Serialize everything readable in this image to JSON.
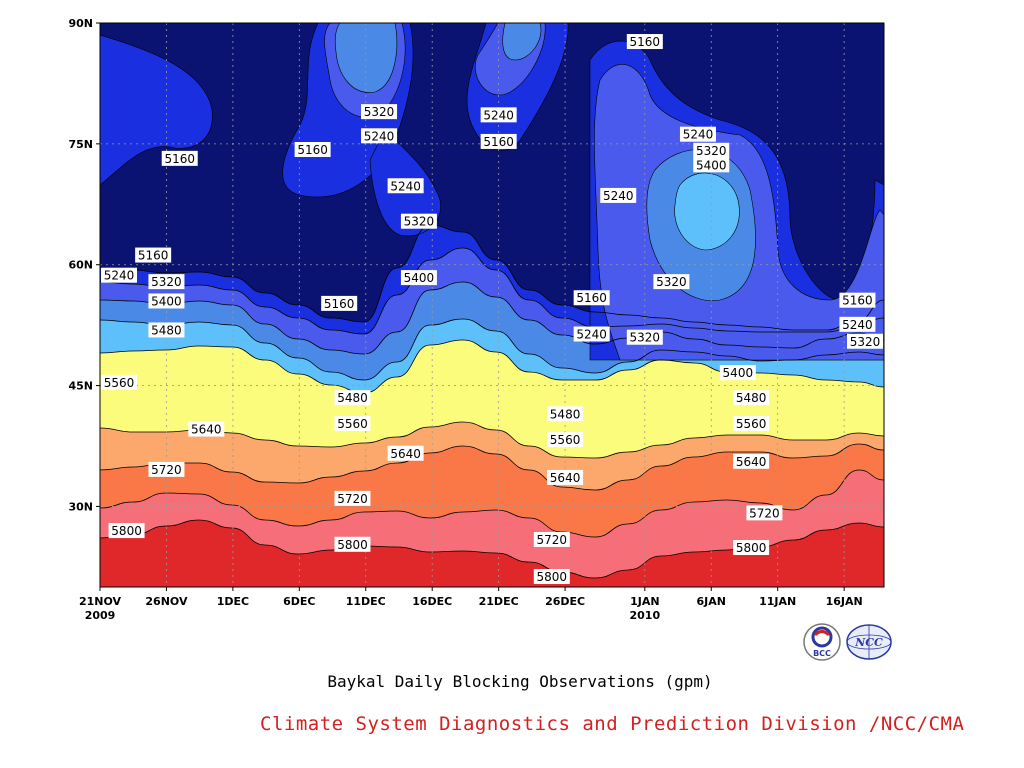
{
  "chart_data": {
    "type": "contour",
    "title": "Baykal Daily Blocking Observations (gpm)",
    "x_ticks": [
      {
        "date": "2009-11-21",
        "label": "21NOV",
        "sub": "2009"
      },
      {
        "date": "2009-11-26",
        "label": "26NOV"
      },
      {
        "date": "2009-12-01",
        "label": "1DEC"
      },
      {
        "date": "2009-12-06",
        "label": "6DEC"
      },
      {
        "date": "2009-12-11",
        "label": "11DEC"
      },
      {
        "date": "2009-12-16",
        "label": "16DEC"
      },
      {
        "date": "2009-12-21",
        "label": "21DEC"
      },
      {
        "date": "2009-12-26",
        "label": "26DEC"
      },
      {
        "date": "2010-01-01",
        "label": "1JAN",
        "sub": "2010"
      },
      {
        "date": "2010-01-06",
        "label": "6JAN"
      },
      {
        "date": "2010-01-11",
        "label": "11JAN"
      },
      {
        "date": "2010-01-16",
        "label": "16JAN"
      }
    ],
    "x_range": [
      "2009-11-21",
      "2010-01-19"
    ],
    "y_ticks": [
      {
        "value": 30,
        "label": "30N"
      },
      {
        "value": 45,
        "label": "45N"
      },
      {
        "value": 60,
        "label": "60N"
      },
      {
        "value": 75,
        "label": "75N"
      },
      {
        "value": 90,
        "label": "90N"
      }
    ],
    "y_range": [
      20,
      90
    ],
    "grid": true,
    "contour_levels": [
      5160,
      5240,
      5320,
      5400,
      5480,
      5560,
      5640,
      5720,
      5800
    ],
    "fill_colors": [
      "#0a1371",
      "#1a30e0",
      "#4a5aec",
      "#4a8ae6",
      "#5ec0fa",
      "#fbfb7c",
      "#fde3a0",
      "#fca86c",
      "#fa7848",
      "#f56e78",
      "#e0282a"
    ],
    "contour_labels": [
      {
        "value": "5160",
        "date": "2009-11-27",
        "lat": 73.2
      },
      {
        "value": "5160",
        "date": "2009-12-07",
        "lat": 74.3
      },
      {
        "value": "5160",
        "date": "2009-11-25",
        "lat": 61.2
      },
      {
        "value": "5160",
        "date": "2009-12-09",
        "lat": 55.2
      },
      {
        "value": "5160",
        "date": "2010-01-01",
        "lat": 87.7
      },
      {
        "value": "5160",
        "date": "2009-12-28",
        "lat": 55.9
      },
      {
        "value": "5160",
        "date": "2010-01-17",
        "lat": 55.6
      },
      {
        "value": "5160",
        "date": "2009-12-21",
        "lat": 75.3
      },
      {
        "value": "5240",
        "date": "2009-11-21",
        "lat": 58.7
      },
      {
        "value": "5240",
        "date": "2009-12-12",
        "lat": 76.0
      },
      {
        "value": "5240",
        "date": "2009-12-14",
        "lat": 69.8
      },
      {
        "value": "5240",
        "date": "2009-12-21",
        "lat": 78.6
      },
      {
        "value": "5240",
        "date": "2009-12-30",
        "lat": 68.6
      },
      {
        "value": "5240",
        "date": "2010-01-05",
        "lat": 76.2
      },
      {
        "value": "5240",
        "date": "2009-12-28",
        "lat": 51.4
      },
      {
        "value": "5240",
        "date": "2010-01-17",
        "lat": 52.6
      },
      {
        "value": "5320",
        "date": "2009-11-26",
        "lat": 57.9
      },
      {
        "value": "5320",
        "date": "2009-12-12",
        "lat": 79.0
      },
      {
        "value": "5320",
        "date": "2009-12-15",
        "lat": 65.4
      },
      {
        "value": "5320",
        "date": "2010-01-06",
        "lat": 74.2
      },
      {
        "value": "5320",
        "date": "2010-01-03",
        "lat": 57.9
      },
      {
        "value": "5320",
        "date": "2010-01-01",
        "lat": 51.0
      },
      {
        "value": "5320",
        "date": "2010-01-18",
        "lat": 50.5
      },
      {
        "value": "5400",
        "date": "2009-11-26",
        "lat": 55.5
      },
      {
        "value": "5400",
        "date": "2009-12-15",
        "lat": 58.4
      },
      {
        "value": "5400",
        "date": "2010-01-06",
        "lat": 72.4
      },
      {
        "value": "5400",
        "date": "2010-01-08",
        "lat": 46.6
      },
      {
        "value": "5480",
        "date": "2009-11-26",
        "lat": 51.9
      },
      {
        "value": "5480",
        "date": "2009-12-10",
        "lat": 43.5
      },
      {
        "value": "5480",
        "date": "2009-12-26",
        "lat": 41.5
      },
      {
        "value": "5480",
        "date": "2010-01-09",
        "lat": 43.5
      },
      {
        "value": "5560",
        "date": "2009-11-21",
        "lat": 45.4
      },
      {
        "value": "5560",
        "date": "2009-12-10",
        "lat": 40.3
      },
      {
        "value": "5560",
        "date": "2009-12-26",
        "lat": 38.3
      },
      {
        "value": "5560",
        "date": "2010-01-09",
        "lat": 40.3
      },
      {
        "value": "5640",
        "date": "2009-11-29",
        "lat": 39.6
      },
      {
        "value": "5640",
        "date": "2009-12-14",
        "lat": 36.6
      },
      {
        "value": "5640",
        "date": "2009-12-26",
        "lat": 33.6
      },
      {
        "value": "5640",
        "date": "2010-01-09",
        "lat": 35.6
      },
      {
        "value": "5720",
        "date": "2009-11-26",
        "lat": 34.6
      },
      {
        "value": "5720",
        "date": "2009-12-10",
        "lat": 31.0
      },
      {
        "value": "5720",
        "date": "2009-12-25",
        "lat": 25.9
      },
      {
        "value": "5720",
        "date": "2010-01-10",
        "lat": 29.2
      },
      {
        "value": "5800",
        "date": "2009-11-23",
        "lat": 27.0
      },
      {
        "value": "5800",
        "date": "2009-12-10",
        "lat": 25.3
      },
      {
        "value": "5800",
        "date": "2009-12-25",
        "lat": 21.3
      },
      {
        "value": "5800",
        "date": "2010-01-09",
        "lat": 24.9
      }
    ]
  },
  "caption": "Baykal Daily Blocking Observations (gpm)",
  "credit": "Climate System Diagnostics and Prediction Division /NCC/CMA",
  "logos": [
    {
      "name": "bcc-logo-icon",
      "text": "BCC"
    },
    {
      "name": "ncc-logo-icon",
      "text": "NCC"
    }
  ]
}
